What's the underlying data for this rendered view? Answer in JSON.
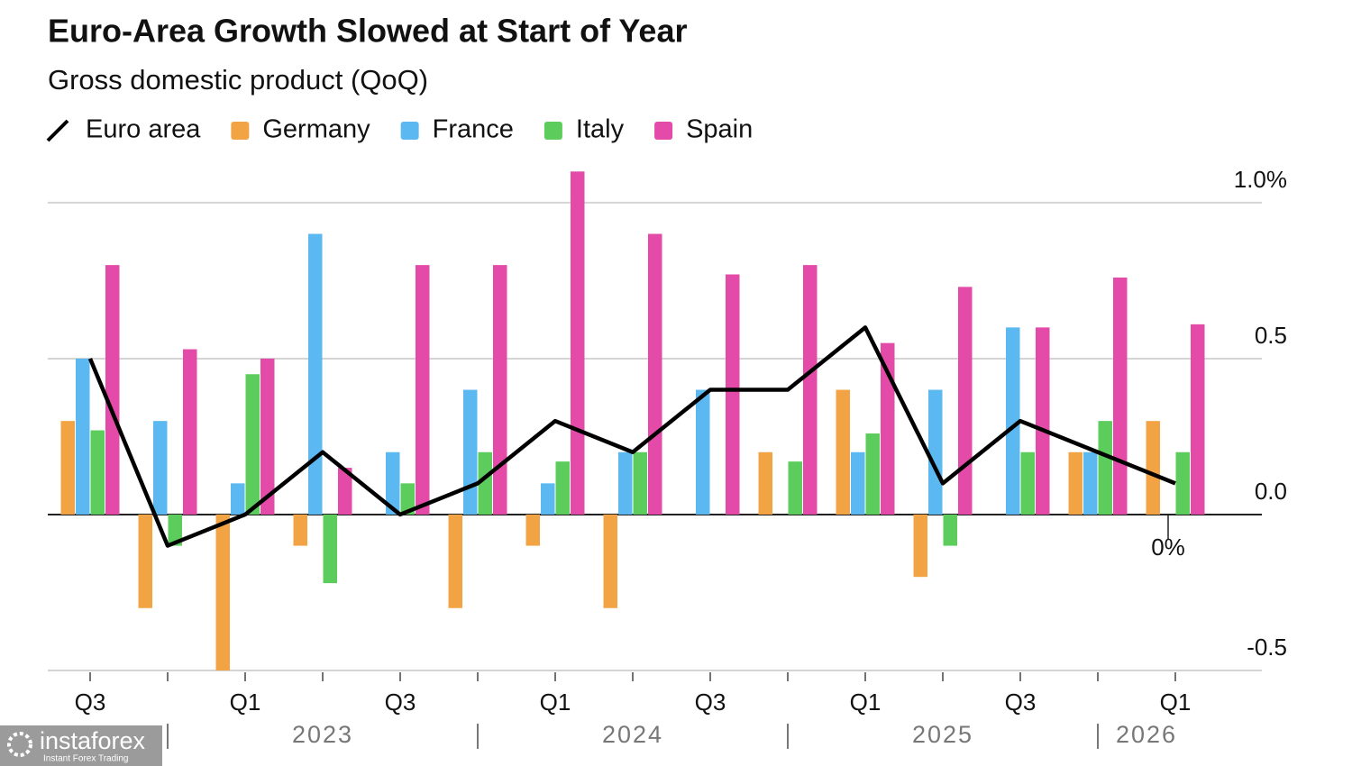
{
  "chart_data": {
    "type": "bar",
    "title": "Euro-Area Growth Slowed at Start of Year",
    "subtitle": "Gross domestic product (QoQ)",
    "categories": [
      "Q3",
      null,
      "Q1",
      null,
      "Q3",
      null,
      "Q1",
      null,
      "Q3",
      null,
      "Q1",
      null,
      "Q3",
      null,
      "Q1"
    ],
    "year_labels": [
      "2023",
      "2024",
      "2025",
      "2026"
    ],
    "line_series": {
      "name": "Euro area",
      "color": "#000000",
      "values": [
        0.5,
        -0.1,
        0.0,
        0.2,
        0.0,
        0.1,
        0.3,
        0.2,
        0.4,
        0.4,
        0.6,
        0.1,
        0.3,
        0.2,
        0.1
      ]
    },
    "series": [
      {
        "name": "Germany",
        "color": "#f2a444",
        "values": [
          0.3,
          -0.3,
          -0.5,
          -0.1,
          0.0,
          -0.3,
          -0.1,
          -0.3,
          0.0,
          0.2,
          0.4,
          -0.2,
          0.0,
          0.2,
          0.3
        ]
      },
      {
        "name": "France",
        "color": "#5bb8f0",
        "values": [
          0.5,
          0.3,
          0.1,
          0.9,
          0.2,
          0.4,
          0.1,
          0.2,
          0.4,
          0.0,
          0.2,
          0.4,
          0.6,
          0.2,
          null
        ]
      },
      {
        "name": "Italy",
        "color": "#5ccc5c",
        "values": [
          0.27,
          -0.1,
          0.45,
          -0.22,
          0.1,
          0.2,
          0.17,
          0.2,
          0.0,
          0.17,
          0.26,
          -0.1,
          0.2,
          0.3,
          0.2
        ]
      },
      {
        "name": "Spain",
        "color": "#e44ba8",
        "values": [
          0.8,
          0.53,
          0.5,
          0.15,
          0.8,
          0.8,
          1.1,
          0.9,
          0.77,
          0.8,
          0.55,
          0.73,
          0.6,
          0.76,
          0.61
        ]
      }
    ],
    "ylim": [
      -0.5,
      1.15
    ],
    "yticks": [
      {
        "value": 1.0,
        "label": "1.0%"
      },
      0.5,
      {
        "value": 0.0,
        "label": "0.0"
      },
      -0.5
    ],
    "grid": true,
    "annotation": "0%",
    "watermark": {
      "name": "instaforex",
      "tagline": "Instant Forex Trading"
    }
  }
}
